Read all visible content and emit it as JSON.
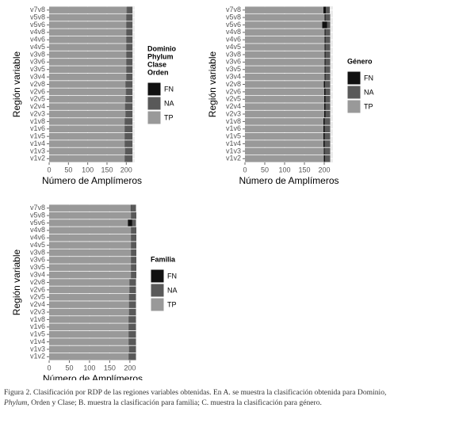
{
  "chart_data": [
    {
      "type": "bar",
      "orientation": "horizontal",
      "stacked": true,
      "xlabel": "Número de Amplímeros",
      "ylabel": "Región variable",
      "legend_title": [
        "Dominio",
        "Phylum",
        "Clase",
        "Orden"
      ],
      "categories": [
        "v7v8",
        "v5v8",
        "v5v6",
        "v4v8",
        "v4v6",
        "v4v5",
        "v3v8",
        "v3v6",
        "v3v5",
        "v3v4",
        "v2v8",
        "v2v6",
        "v2v5",
        "v2v4",
        "v2v3",
        "v1v8",
        "v1v6",
        "v1v5",
        "v1v4",
        "v1v3",
        "v1v2"
      ],
      "series": [
        {
          "name": "FN",
          "color": "#111111",
          "values": [
            1,
            1,
            1,
            1,
            1,
            1,
            1,
            1,
            1,
            1,
            1,
            1,
            1,
            1,
            1,
            1,
            1,
            1,
            1,
            1,
            1
          ]
        },
        {
          "name": "NA",
          "color": "#595959",
          "values": [
            14,
            15,
            15,
            15,
            15,
            15,
            15,
            15,
            15,
            15,
            17,
            16,
            17,
            18,
            17,
            19,
            19,
            19,
            19,
            18,
            19
          ]
        },
        {
          "name": "TP",
          "color": "#999999",
          "values": [
            201,
            200,
            200,
            200,
            200,
            200,
            200,
            200,
            200,
            200,
            198,
            199,
            198,
            197,
            198,
            196,
            196,
            196,
            196,
            197,
            196
          ]
        }
      ],
      "xlim": [
        0,
        222
      ],
      "xticks": [
        0,
        50,
        100,
        150,
        200
      ],
      "grid": true
    },
    {
      "type": "bar",
      "orientation": "horizontal",
      "stacked": true,
      "xlabel": "Número de Amplímeros",
      "ylabel": "Región variable",
      "legend_title": [
        "Género"
      ],
      "categories": [
        "v7v8",
        "v5v8",
        "v5v6",
        "v4v8",
        "v4v6",
        "v4v5",
        "v3v8",
        "v3v6",
        "v3v5",
        "v3v4",
        "v2v8",
        "v2v6",
        "v2v5",
        "v2v4",
        "v2v3",
        "v1v8",
        "v1v6",
        "v1v5",
        "v1v4",
        "v1v3",
        "v1v2"
      ],
      "series": [
        {
          "name": "FN",
          "color": "#111111",
          "values": [
            6,
            2,
            12,
            2,
            2,
            2,
            2,
            2,
            2,
            2,
            3,
            3,
            3,
            3,
            3,
            3,
            3,
            3,
            3,
            2,
            3
          ]
        },
        {
          "name": "NA",
          "color": "#595959",
          "values": [
            10,
            12,
            8,
            12,
            12,
            12,
            12,
            12,
            12,
            12,
            13,
            12,
            12,
            12,
            12,
            14,
            14,
            14,
            14,
            14,
            13
          ]
        },
        {
          "name": "TP",
          "color": "#999999",
          "values": [
            198,
            201,
            195,
            201,
            201,
            201,
            201,
            201,
            201,
            201,
            199,
            200,
            200,
            200,
            200,
            198,
            198,
            198,
            198,
            199,
            199
          ]
        }
      ],
      "xlim": [
        0,
        222
      ],
      "xticks": [
        0,
        50,
        100,
        150,
        200
      ],
      "grid": true
    },
    {
      "type": "bar",
      "orientation": "horizontal",
      "stacked": true,
      "xlabel": "Número de Amplímeros",
      "ylabel": "Región variable",
      "legend_title": [
        "Familia"
      ],
      "categories": [
        "v7v8",
        "v5v8",
        "v5v6",
        "v4v8",
        "v4v6",
        "v4v5",
        "v3v8",
        "v3v6",
        "v3v5",
        "v3v4",
        "v2v8",
        "v2v6",
        "v2v5",
        "v2v4",
        "v2v3",
        "v1v8",
        "v1v6",
        "v1v5",
        "v1v4",
        "v1v3",
        "v1v2"
      ],
      "series": [
        {
          "name": "FN",
          "color": "#111111",
          "values": [
            1,
            1,
            11,
            1,
            1,
            1,
            1,
            1,
            1,
            1,
            1,
            1,
            1,
            1,
            1,
            1,
            1,
            1,
            1,
            1,
            1
          ]
        },
        {
          "name": "NA",
          "color": "#595959",
          "values": [
            12,
            12,
            9,
            12,
            12,
            12,
            12,
            12,
            12,
            12,
            15,
            15,
            16,
            16,
            16,
            17,
            17,
            17,
            17,
            16,
            17
          ]
        },
        {
          "name": "TP",
          "color": "#999999",
          "values": [
            202,
            203,
            195,
            203,
            203,
            203,
            203,
            203,
            203,
            203,
            199,
            199,
            198,
            198,
            198,
            197,
            197,
            197,
            197,
            198,
            197
          ]
        }
      ],
      "xlim": [
        0,
        216
      ],
      "xticks": [
        0,
        50,
        100,
        150,
        200
      ],
      "grid": true
    }
  ],
  "caption": [
    "Figura 2. Clasificación por RDP de las regiones variables obtenidas. En A. se muestra la clasificación obtenida para Dominio,",
    "Phylum",
    ", Orden y Clase; B. muestra la  clasificación para familia; C. muestra la clasificación para género."
  ]
}
